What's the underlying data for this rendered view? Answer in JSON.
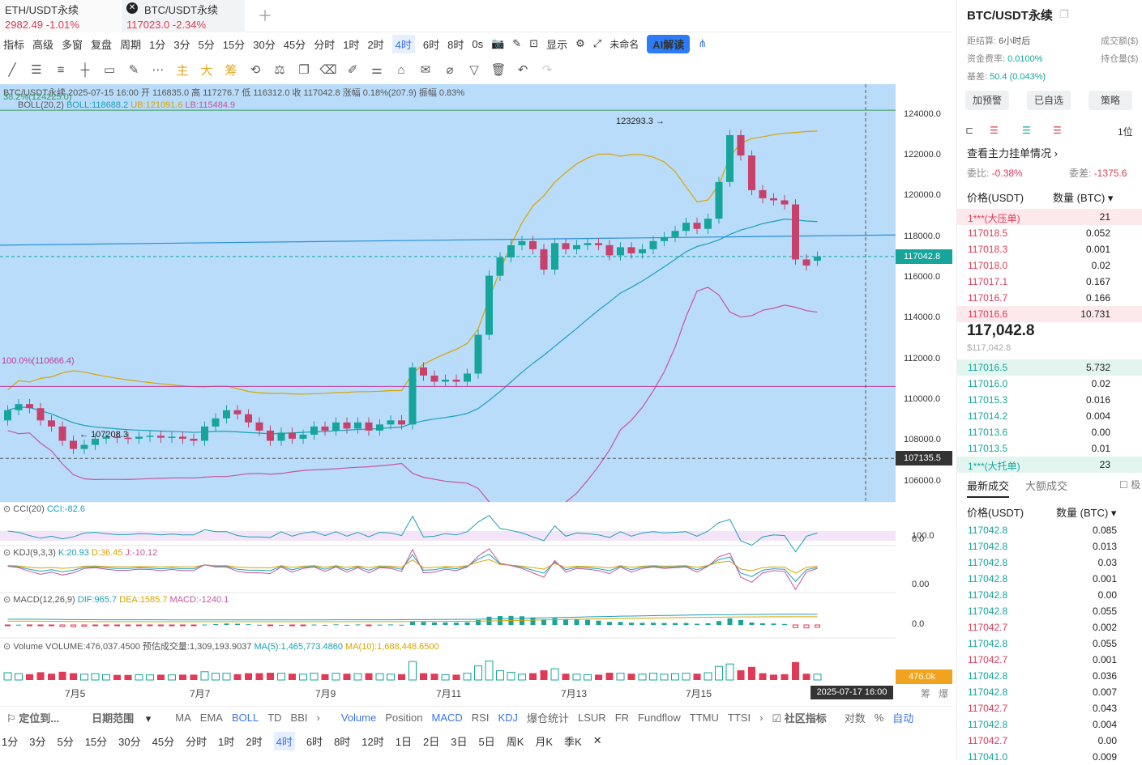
{
  "tabs": [
    {
      "name": "ETH/USDT永续",
      "price": "2982.49",
      "change": "-1.01%"
    },
    {
      "name": "BTC/USDT永续",
      "price": "117023.0",
      "change": "-2.34%"
    }
  ],
  "toolbar": {
    "items": [
      "指标",
      "高级",
      "多窗",
      "复盘",
      "周期",
      "1分",
      "3分",
      "5分",
      "15分",
      "30分",
      "45分",
      "分时",
      "1时",
      "2时",
      "4时",
      "6时",
      "8时",
      "0s"
    ],
    "selected": "4时",
    "display": "显示",
    "layout_name": "未命名",
    "ai": "AI解读"
  },
  "drawing_tools": [
    "主",
    "大",
    "筹"
  ],
  "chart": {
    "info_line": "BTC/USDT永续  2025-07-15 16:00  开 116835.0  高 117276.7  低 116312.0  收 117042.8  涨幅 0.18%(207.9)  振幅 0.83%",
    "boll_line": {
      "name": "BOLL(20,2)",
      "boll": "BOLL:118688.2",
      "ub": "UB:121091.6",
      "lb": "LB:115484.9"
    },
    "fib_top": "38.2%(124225.0)",
    "fib_bottom": "100.0%(110666.4)",
    "high_label": "123293.3",
    "low_label": "107208.3",
    "price_axis": [
      "124000.0",
      "122000.0",
      "120000.0",
      "118000.0",
      "116000.0",
      "114000.0",
      "112000.0",
      "110000.0",
      "108000.0",
      "106000.0"
    ],
    "current_price": "117042.8",
    "cross_price": "107135.5",
    "x_labels": [
      "7月5",
      "7月7",
      "7月9",
      "7月11",
      "7月13",
      "7月15"
    ],
    "cross_date": "2025-07-17 16:00",
    "cci": {
      "label": "CCI(20)",
      "value": "CCI:-82.6",
      "axis": "100.0",
      "axis2": "0.0"
    },
    "kdj": {
      "label": "KDJ(9,3,3)",
      "k": "K:20.93",
      "d": "D:36.45",
      "j": "J:-10.12",
      "axis": "0.00"
    },
    "macd": {
      "label": "MACD(12,26,9)",
      "dif": "DIF:965.7",
      "dea": "DEA:1585.7",
      "macd": "MACD:-1240.1",
      "axis": "0.0"
    },
    "volume": {
      "label": "Volume",
      "vol": "VOLUME:476,037.4500",
      "est": "预估成交量:1,309,193.9037",
      "ma5": "MA(5):1,465,773.4860",
      "ma10": "MA(10):1,688,448.6500",
      "axis": "476.0k"
    },
    "axis_extra": [
      "筹",
      "爆"
    ]
  },
  "chart_data": {
    "type": "candlestick",
    "series": [
      {
        "o": 109000,
        "c": 109500
      },
      {
        "o": 109500,
        "c": 109800
      },
      {
        "o": 109800,
        "c": 109600
      },
      {
        "o": 109600,
        "c": 109000
      },
      {
        "o": 109000,
        "c": 108700
      },
      {
        "o": 108700,
        "c": 108000
      },
      {
        "o": 108000,
        "c": 107600
      },
      {
        "o": 107600,
        "c": 107800
      },
      {
        "o": 107800,
        "c": 108100
      },
      {
        "o": 108100,
        "c": 108200
      },
      {
        "o": 108200,
        "c": 108150
      },
      {
        "o": 108150,
        "c": 108100
      },
      {
        "o": 108100,
        "c": 108200
      },
      {
        "o": 108200,
        "c": 108250
      },
      {
        "o": 108250,
        "c": 108150
      },
      {
        "o": 108150,
        "c": 108200
      },
      {
        "o": 108200,
        "c": 108100
      },
      {
        "o": 108100,
        "c": 108000
      },
      {
        "o": 108000,
        "c": 108700
      },
      {
        "o": 108700,
        "c": 109100
      },
      {
        "o": 109100,
        "c": 109500
      },
      {
        "o": 109500,
        "c": 109300
      },
      {
        "o": 109300,
        "c": 108900
      },
      {
        "o": 108900,
        "c": 108500
      },
      {
        "o": 108500,
        "c": 108000
      },
      {
        "o": 108000,
        "c": 108400
      },
      {
        "o": 108400,
        "c": 108100
      },
      {
        "o": 108100,
        "c": 108300
      },
      {
        "o": 108300,
        "c": 108700
      },
      {
        "o": 108700,
        "c": 108500
      },
      {
        "o": 108500,
        "c": 108900
      },
      {
        "o": 108900,
        "c": 108600
      },
      {
        "o": 108600,
        "c": 108900
      },
      {
        "o": 108900,
        "c": 108500
      },
      {
        "o": 108500,
        "c": 108800
      },
      {
        "o": 108800,
        "c": 109000
      },
      {
        "o": 109000,
        "c": 108800
      },
      {
        "o": 108800,
        "c": 111600
      },
      {
        "o": 111600,
        "c": 111200
      },
      {
        "o": 111200,
        "c": 110900
      },
      {
        "o": 110900,
        "c": 111000
      },
      {
        "o": 111000,
        "c": 110900
      },
      {
        "o": 110900,
        "c": 111300
      },
      {
        "o": 111300,
        "c": 113200
      },
      {
        "o": 113200,
        "c": 116100
      },
      {
        "o": 116100,
        "c": 117000
      },
      {
        "o": 117000,
        "c": 117600
      },
      {
        "o": 117600,
        "c": 117800
      },
      {
        "o": 117800,
        "c": 117400
      },
      {
        "o": 117400,
        "c": 116400
      },
      {
        "o": 116400,
        "c": 117700
      },
      {
        "o": 117700,
        "c": 117400
      },
      {
        "o": 117400,
        "c": 117600
      },
      {
        "o": 117600,
        "c": 117700
      },
      {
        "o": 117700,
        "c": 117600
      },
      {
        "o": 117600,
        "c": 117100
      },
      {
        "o": 117100,
        "c": 117500
      },
      {
        "o": 117500,
        "c": 117200
      },
      {
        "o": 117200,
        "c": 117400
      },
      {
        "o": 117400,
        "c": 117800
      },
      {
        "o": 117800,
        "c": 118000
      },
      {
        "o": 118000,
        "c": 118300
      },
      {
        "o": 118300,
        "c": 118700
      },
      {
        "o": 118700,
        "c": 118400
      },
      {
        "o": 118400,
        "c": 118900
      },
      {
        "o": 118900,
        "c": 120700
      },
      {
        "o": 120700,
        "c": 123000
      },
      {
        "o": 123000,
        "c": 122000
      },
      {
        "o": 122000,
        "c": 120300
      },
      {
        "o": 120300,
        "c": 119900
      },
      {
        "o": 119900,
        "c": 119800
      },
      {
        "o": 119800,
        "c": 119600
      },
      {
        "o": 119600,
        "c": 116900
      },
      {
        "o": 116900,
        "c": 116600
      },
      {
        "o": 116835,
        "c": 117042.8
      }
    ],
    "ylim": [
      105000,
      125500
    ]
  },
  "right": {
    "title": "BTC/USDT永续",
    "settle_label": "距结算:",
    "settle": "6小时后",
    "turnover": "成交额($)",
    "funding_label": "资金费率:",
    "funding": "0.0100%",
    "oi": "持仓量($)",
    "basis_label": "基差:",
    "basis": "50.4 (0.043%)",
    "buttons": [
      "加预警",
      "已自选",
      "策略"
    ],
    "depth_unit": "1位",
    "view_orders": "查看主力挂单情况",
    "ratio_label": "委比:",
    "ratio": "-0.38%",
    "diff_label": "委差:",
    "diff": "-1375.6",
    "col_price": "价格(USDT)",
    "col_qty": "数量 (BTC)",
    "asks": [
      {
        "p": "1***(大压单)",
        "q": "21"
      },
      {
        "p": "117018.5",
        "q": "0.052"
      },
      {
        "p": "117018.3",
        "q": "0.001"
      },
      {
        "p": "117018.0",
        "q": "0.02"
      },
      {
        "p": "117017.1",
        "q": "0.167"
      },
      {
        "p": "117016.7",
        "q": "0.166"
      },
      {
        "p": "117016.6",
        "q": "10.731"
      }
    ],
    "last": "117,042.8",
    "last_usd": "$117,042.8",
    "bids": [
      {
        "p": "117016.5",
        "q": "5.732"
      },
      {
        "p": "117016.0",
        "q": "0.02"
      },
      {
        "p": "117015.3",
        "q": "0.016"
      },
      {
        "p": "117014.2",
        "q": "0.004"
      },
      {
        "p": "117013.6",
        "q": "0.00"
      },
      {
        "p": "117013.5",
        "q": "0.01"
      },
      {
        "p": "1***(大托单)",
        "q": "23"
      }
    ],
    "trade_tabs": [
      "最新成交",
      "大额成交"
    ],
    "trade_extra": "极",
    "trades": [
      {
        "p": "117042.8",
        "q": "0.085",
        "s": "b"
      },
      {
        "p": "117042.8",
        "q": "0.013",
        "s": "b"
      },
      {
        "p": "117042.8",
        "q": "0.03",
        "s": "b"
      },
      {
        "p": "117042.8",
        "q": "0.001",
        "s": "b"
      },
      {
        "p": "117042.8",
        "q": "0.00",
        "s": "b"
      },
      {
        "p": "117042.8",
        "q": "0.055",
        "s": "b"
      },
      {
        "p": "117042.7",
        "q": "0.002",
        "s": "s"
      },
      {
        "p": "117042.8",
        "q": "0.055",
        "s": "b"
      },
      {
        "p": "117042.7",
        "q": "0.001",
        "s": "s"
      },
      {
        "p": "117042.8",
        "q": "0.036",
        "s": "b"
      },
      {
        "p": "117042.8",
        "q": "0.007",
        "s": "b"
      },
      {
        "p": "117042.7",
        "q": "0.043",
        "s": "s"
      },
      {
        "p": "117042.8",
        "q": "0.004",
        "s": "b"
      },
      {
        "p": "117042.7",
        "q": "0.00",
        "s": "s"
      },
      {
        "p": "117041.0",
        "q": "0.009",
        "s": "b"
      }
    ]
  },
  "bottom": {
    "locate": "定位到...",
    "range": "日期范围",
    "indicators": [
      "MA",
      "EMA",
      "BOLL",
      "TD",
      "BBI"
    ],
    "sub_indicators": [
      "Volume",
      "Position",
      "MACD",
      "RSI",
      "KDJ",
      "爆仓统计",
      "LSUR",
      "FR",
      "Fundflow",
      "TTMU",
      "TTSI"
    ],
    "community": "社区指标",
    "right_tools": [
      "对数",
      "%",
      "自动"
    ],
    "periods": [
      "1分",
      "3分",
      "5分",
      "15分",
      "30分",
      "45分",
      "分时",
      "1时",
      "2时",
      "4时",
      "6时",
      "8时",
      "12时",
      "1日",
      "2日",
      "3日",
      "5日",
      "周K",
      "月K",
      "季K"
    ],
    "period_selected": "4时"
  }
}
